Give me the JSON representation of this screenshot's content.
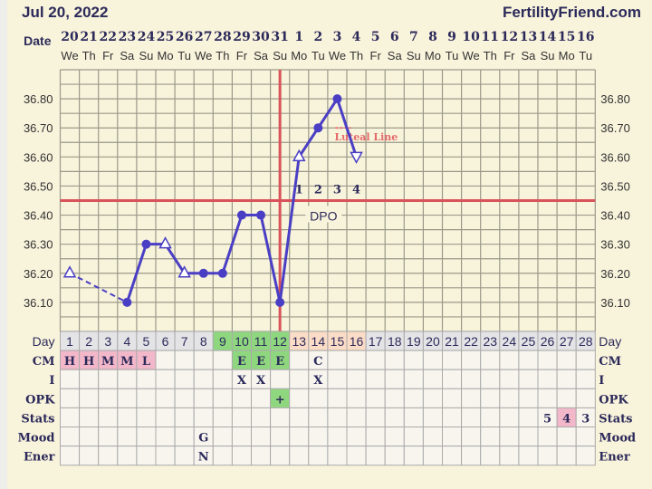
{
  "header": {
    "date": "Jul 20, 2022",
    "site": "FertilityFriend.com"
  },
  "labels": {
    "date": "Date",
    "day": "Day",
    "dpo": "DPO",
    "luteal": "Luteal Line"
  },
  "dates": [
    "20",
    "21",
    "22",
    "23",
    "24",
    "25",
    "26",
    "27",
    "28",
    "29",
    "30",
    "31",
    "1",
    "2",
    "3",
    "4",
    "5",
    "6",
    "7",
    "8",
    "9",
    "10",
    "11",
    "12",
    "13",
    "14",
    "15",
    "16"
  ],
  "weekdays": [
    "We",
    "Th",
    "Fr",
    "Sa",
    "Su",
    "Mo",
    "Tu",
    "We",
    "Th",
    "Fr",
    "Sa",
    "Su",
    "Mo",
    "Tu",
    "We",
    "Th",
    "Fr",
    "Sa",
    "Su",
    "Mo",
    "Tu",
    "We",
    "Th",
    "Fr",
    "Sa",
    "Su",
    "Mo",
    "Tu"
  ],
  "chart_data": {
    "type": "line",
    "ylabel": "",
    "ylim": [
      36.0,
      36.9
    ],
    "yticks": [
      "36.10",
      "36.20",
      "36.30",
      "36.40",
      "36.50",
      "36.60",
      "36.70",
      "36.80"
    ],
    "x": [
      1,
      4,
      5,
      6,
      7,
      8,
      9,
      10,
      11,
      12,
      13,
      14,
      15,
      16
    ],
    "temps": [
      36.2,
      36.1,
      36.3,
      36.3,
      36.2,
      36.2,
      36.2,
      36.4,
      36.4,
      36.1,
      36.6,
      36.7,
      36.8,
      36.6
    ],
    "markers": [
      "open-up",
      "filled",
      "filled",
      "open-up",
      "open-up",
      "filled",
      "filled",
      "filled",
      "filled",
      "filled",
      "open-up",
      "filled",
      "filled",
      "open-down"
    ],
    "dashed_segments": [
      [
        1,
        4
      ]
    ],
    "coverline": 36.45,
    "ovulation_day": 12,
    "dpo": [
      {
        "day": 13,
        "label": "1"
      },
      {
        "day": 14,
        "label": "2"
      },
      {
        "day": 15,
        "label": "3"
      },
      {
        "day": 16,
        "label": "4"
      }
    ],
    "luteal_line_temp": 36.7,
    "grid": true,
    "colors": {
      "line": "#4a3fc4",
      "coverline": "#d9535a",
      "grid": "#9a9a8a"
    }
  },
  "day_colors": {
    "gray": [
      1,
      2,
      3,
      4,
      5,
      6,
      7,
      8,
      17,
      18,
      19,
      20,
      21,
      22,
      23,
      24,
      25,
      26,
      27,
      28
    ],
    "green": [
      9,
      10,
      11,
      12
    ],
    "peach": [
      13,
      14,
      15,
      16
    ]
  },
  "rows": [
    {
      "label": "CM",
      "cells": {
        "1": "H",
        "2": "H",
        "3": "M",
        "4": "M",
        "5": "L",
        "10": "E",
        "11": "E",
        "12": "E",
        "14": "C"
      },
      "pink": [
        1,
        2,
        3,
        4,
        5
      ],
      "green": [
        10,
        11,
        12
      ]
    },
    {
      "label": "I",
      "cells": {
        "10": "X",
        "11": "X",
        "14": "X"
      },
      "pink": [],
      "green": []
    },
    {
      "label": "OPK",
      "cells": {
        "12": "+"
      },
      "pink": [],
      "green": [
        12
      ]
    },
    {
      "label": "Stats",
      "cells": {
        "26": "5",
        "27": "4",
        "28": "3"
      },
      "pink": [
        27
      ],
      "green": []
    },
    {
      "label": "Mood",
      "cells": {
        "8": "G"
      },
      "pink": [],
      "green": []
    },
    {
      "label": "Ener",
      "cells": {
        "8": "N"
      },
      "pink": [],
      "green": []
    }
  ]
}
